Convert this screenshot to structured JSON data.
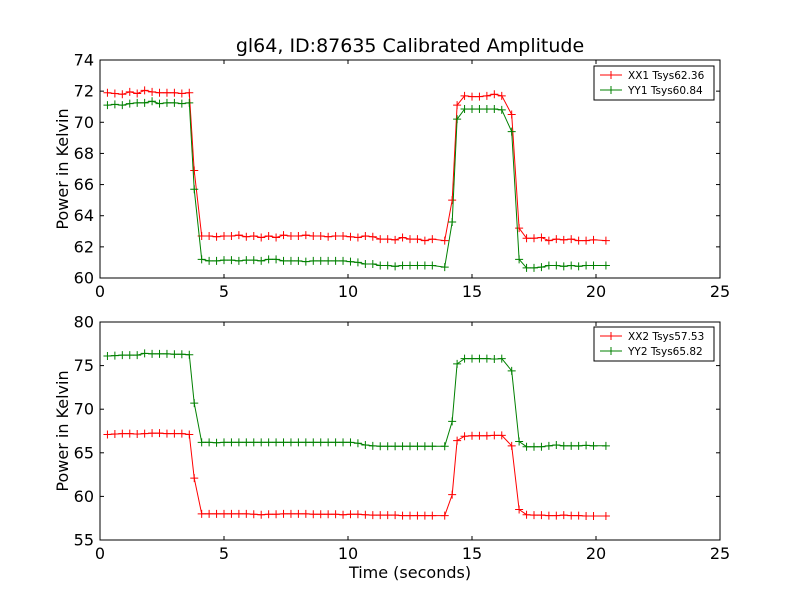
{
  "figure": {
    "title": "gl64, ID:87635 Calibrated Amplitude",
    "xlabel": "Time (seconds)"
  },
  "chart_data": [
    {
      "type": "line",
      "title": "gl64, ID:87635 Calibrated Amplitude",
      "xlabel": "",
      "ylabel": "Power in Kelvin",
      "xlim": [
        0,
        25
      ],
      "ylim": [
        60,
        74
      ],
      "xticks": [
        0,
        5,
        10,
        15,
        20,
        25
      ],
      "yticks": [
        60,
        62,
        64,
        66,
        68,
        70,
        72,
        74
      ],
      "grid": false,
      "legend_position": "top-right",
      "series": [
        {
          "name": "XX1 Tsys62.36",
          "color": "#ff0000",
          "values": [
            71.9,
            71.85,
            71.8,
            71.95,
            71.85,
            72.05,
            71.95,
            71.9,
            71.9,
            71.9,
            71.85,
            71.9,
            66.9,
            62.7,
            62.7,
            62.65,
            62.7,
            62.7,
            62.75,
            62.65,
            62.7,
            62.6,
            62.7,
            62.6,
            62.75,
            62.7,
            62.7,
            62.75,
            62.7,
            62.7,
            62.65,
            62.7,
            62.7,
            62.65,
            62.6,
            62.7,
            62.65,
            62.5,
            62.5,
            62.45,
            62.6,
            62.5,
            62.5,
            62.4,
            62.5,
            62.4,
            65.0,
            71.1,
            71.7,
            71.65,
            71.65,
            71.7,
            71.8,
            71.7,
            70.5,
            63.2,
            62.55,
            62.55,
            62.6,
            62.4,
            62.5,
            62.45,
            62.5,
            62.4,
            62.4,
            62.45,
            62.4
          ]
        },
        {
          "name": "YY1 Tsys60.84",
          "color": "#008000",
          "values": [
            71.1,
            71.15,
            71.1,
            71.2,
            71.25,
            71.25,
            71.35,
            71.2,
            71.25,
            71.25,
            71.2,
            71.25,
            65.7,
            61.2,
            61.1,
            61.1,
            61.15,
            61.15,
            61.1,
            61.15,
            61.15,
            61.1,
            61.2,
            61.2,
            61.1,
            61.1,
            61.1,
            61.05,
            61.1,
            61.1,
            61.1,
            61.1,
            61.1,
            61.05,
            61.0,
            60.9,
            60.9,
            60.8,
            60.8,
            60.75,
            60.8,
            60.8,
            60.8,
            60.8,
            60.8,
            60.7,
            63.6,
            70.2,
            70.85,
            70.85,
            70.85,
            70.85,
            70.85,
            70.8,
            69.4,
            61.2,
            60.65,
            60.65,
            60.7,
            60.8,
            60.8,
            60.75,
            60.8,
            60.75,
            60.8,
            60.8,
            60.8
          ]
        }
      ]
    },
    {
      "type": "line",
      "title": "",
      "xlabel": "Time (seconds)",
      "ylabel": "Power in Kelvin",
      "xlim": [
        0,
        25
      ],
      "ylim": [
        55,
        80
      ],
      "xticks": [
        0,
        5,
        10,
        15,
        20,
        25
      ],
      "yticks": [
        55,
        60,
        65,
        70,
        75,
        80
      ],
      "grid": false,
      "legend_position": "top-right",
      "series": [
        {
          "name": "XX2 Tsys57.53",
          "color": "#ff0000",
          "values": [
            67.1,
            67.15,
            67.2,
            67.2,
            67.15,
            67.2,
            67.25,
            67.25,
            67.2,
            67.2,
            67.2,
            67.1,
            62.1,
            58.0,
            58.0,
            58.0,
            58.0,
            58.0,
            58.0,
            58.0,
            57.95,
            57.9,
            57.95,
            57.95,
            58.0,
            58.0,
            58.0,
            58.0,
            57.95,
            57.95,
            57.95,
            57.95,
            57.9,
            57.95,
            57.95,
            57.9,
            57.85,
            57.85,
            57.85,
            57.85,
            57.8,
            57.8,
            57.8,
            57.8,
            57.8,
            57.8,
            60.2,
            66.4,
            66.9,
            66.95,
            66.95,
            66.95,
            67.0,
            67.0,
            65.8,
            58.5,
            57.9,
            57.85,
            57.85,
            57.8,
            57.8,
            57.85,
            57.8,
            57.8,
            57.75,
            57.75,
            57.75
          ]
        },
        {
          "name": "YY2 Tsys65.82",
          "color": "#008000",
          "values": [
            76.1,
            76.15,
            76.2,
            76.2,
            76.2,
            76.4,
            76.35,
            76.35,
            76.35,
            76.3,
            76.3,
            76.25,
            70.7,
            66.2,
            66.2,
            66.15,
            66.2,
            66.2,
            66.2,
            66.2,
            66.2,
            66.2,
            66.2,
            66.2,
            66.2,
            66.2,
            66.2,
            66.2,
            66.2,
            66.2,
            66.2,
            66.2,
            66.2,
            66.2,
            66.1,
            65.9,
            65.8,
            65.75,
            65.75,
            65.75,
            65.75,
            65.75,
            65.75,
            65.75,
            65.75,
            65.75,
            68.6,
            75.2,
            75.8,
            75.8,
            75.8,
            75.8,
            75.75,
            75.8,
            74.4,
            66.3,
            65.7,
            65.7,
            65.7,
            65.8,
            65.9,
            65.8,
            65.8,
            65.8,
            65.85,
            65.8,
            65.8
          ]
        }
      ]
    }
  ],
  "sample_times": [
    0.3,
    0.6,
    0.9,
    1.2,
    1.5,
    1.8,
    2.1,
    2.4,
    2.7,
    3.0,
    3.3,
    3.6,
    3.8,
    4.1,
    4.4,
    4.7,
    5.0,
    5.3,
    5.6,
    5.9,
    6.2,
    6.5,
    6.8,
    7.1,
    7.4,
    7.7,
    8.0,
    8.3,
    8.6,
    8.9,
    9.2,
    9.5,
    9.8,
    10.1,
    10.4,
    10.7,
    11.0,
    11.3,
    11.6,
    11.9,
    12.2,
    12.5,
    12.8,
    13.1,
    13.4,
    13.9,
    14.2,
    14.4,
    14.7,
    15.0,
    15.3,
    15.6,
    15.9,
    16.2,
    16.6,
    16.9,
    17.2,
    17.5,
    17.8,
    18.1,
    18.4,
    18.7,
    19.0,
    19.3,
    19.6,
    19.9,
    20.4
  ]
}
